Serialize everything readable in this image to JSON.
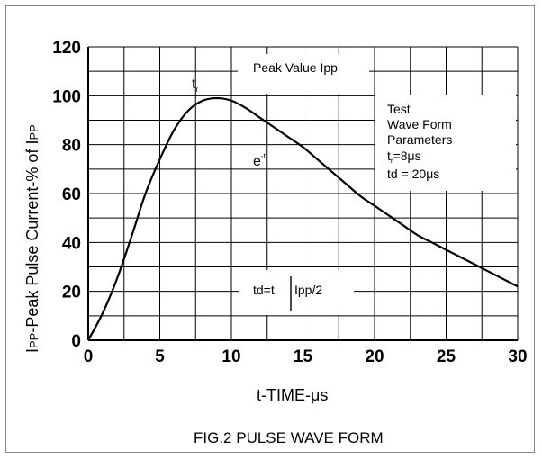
{
  "chart_data": {
    "type": "line",
    "title": "FIG.2 PULSE WAVE FORM",
    "ylabel": "IPP-Peak Pulse Current-% of IPP",
    "ylabel_parts": {
      "i1": "I",
      "pp1": "PP",
      "mid": "-Peak Pulse Current-% of ",
      "i2": "I",
      "pp2": "PP"
    },
    "xlabel": "t-TIME-μs",
    "xlim": [
      0,
      30
    ],
    "ylim": [
      0,
      120
    ],
    "x_ticks": [
      "0",
      "5",
      "10",
      "15",
      "20",
      "25",
      "30"
    ],
    "y_ticks": [
      "0",
      "20",
      "40",
      "60",
      "80",
      "100",
      "120"
    ],
    "grid": true,
    "series": [
      {
        "x": [
          0,
          1,
          2,
          3,
          4,
          5,
          6,
          7,
          8,
          9,
          10,
          11,
          12,
          13,
          14,
          15,
          16,
          17,
          18,
          19,
          20,
          21,
          22,
          23,
          24,
          25,
          26,
          27,
          28,
          29,
          30
        ],
        "values": [
          0,
          11,
          25,
          42,
          60,
          74,
          86,
          94,
          98,
          99,
          98,
          95,
          91,
          87,
          83,
          79,
          74,
          69,
          64,
          59,
          55,
          51,
          47,
          43,
          40,
          37,
          34,
          31,
          28,
          25,
          22
        ]
      }
    ],
    "annotations": {
      "peak_label": "Peak Value Ipp",
      "tr_main": "t",
      "tr_sub": "r",
      "exp_main": "e",
      "exp_sup": "-t",
      "td_label": "td=t",
      "td_suffix": "Ipp/2",
      "params": {
        "line1": "Test",
        "line2": "Wave Form",
        "line3": "Parameters",
        "line4_main": "t",
        "line4_sub": "r",
        "line4_rest": "=8μs",
        "line5": "td = 20μs"
      }
    }
  }
}
